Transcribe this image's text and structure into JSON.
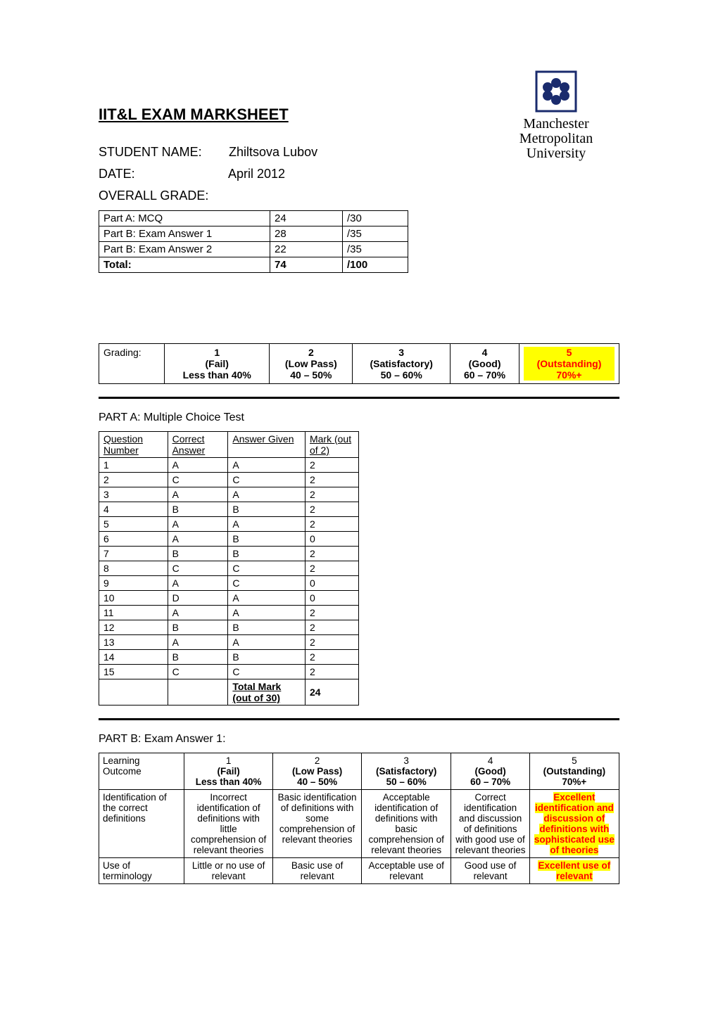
{
  "title": "IIT&L EXAM MARKSHEET",
  "logo": {
    "line1": "Manchester",
    "line2": "Metropolitan",
    "line3": "University",
    "icon_color": "#1a2b6d"
  },
  "meta": {
    "student_label": "STUDENT NAME:",
    "student_value": "Zhiltsova Lubov",
    "date_label": "DATE:",
    "date_value": "April 2012",
    "grade_label": "OVERALL GRADE:"
  },
  "summary": {
    "rows": [
      {
        "label": "Part A: MCQ",
        "score": "24",
        "out_of": "/30"
      },
      {
        "label": "Part B: Exam Answer 1",
        "score": "28",
        "out_of": "/35"
      },
      {
        "label": "Part B: Exam Answer 2",
        "score": "22",
        "out_of": "/35"
      }
    ],
    "total": {
      "label": "Total:",
      "score": "74",
      "out_of": "/100"
    }
  },
  "grading": {
    "label": "Grading:",
    "cols": [
      {
        "num": "1",
        "lbl": "(Fail)",
        "rng": "Less than 40%",
        "hl": false
      },
      {
        "num": "2",
        "lbl": "(Low Pass)",
        "rng": "40 – 50%",
        "hl": false
      },
      {
        "num": "3",
        "lbl": "(Satisfactory)",
        "rng": "50 – 60%",
        "hl": false
      },
      {
        "num": "4",
        "lbl": "(Good)",
        "rng": "60 – 70%",
        "hl": false
      },
      {
        "num": "5",
        "lbl": "(Outstanding)",
        "rng": "70%+",
        "hl": true
      }
    ]
  },
  "partA": {
    "heading": "PART A: Multiple Choice Test",
    "headers": {
      "q": "Question Number",
      "correct": "Correct Answer",
      "given": "Answer Given",
      "mark": "Mark (out of 2)"
    },
    "rows": [
      {
        "q": "1",
        "correct": "A",
        "given": "A",
        "mark": "2"
      },
      {
        "q": "2",
        "correct": "C",
        "given": "C",
        "mark": "2"
      },
      {
        "q": "3",
        "correct": "A",
        "given": "A",
        "mark": "2"
      },
      {
        "q": "4",
        "correct": "B",
        "given": "B",
        "mark": "2"
      },
      {
        "q": "5",
        "correct": "A",
        "given": "A",
        "mark": "2"
      },
      {
        "q": "6",
        "correct": "A",
        "given": "B",
        "mark": "0"
      },
      {
        "q": "7",
        "correct": "B",
        "given": "B",
        "mark": "2"
      },
      {
        "q": "8",
        "correct": "C",
        "given": "C",
        "mark": "2"
      },
      {
        "q": "9",
        "correct": "A",
        "given": "C",
        "mark": "0"
      },
      {
        "q": "10",
        "correct": "D",
        "given": "A",
        "mark": "0"
      },
      {
        "q": "11",
        "correct": "A",
        "given": "A",
        "mark": "2"
      },
      {
        "q": "12",
        "correct": "B",
        "given": "B",
        "mark": "2"
      },
      {
        "q": "13",
        "correct": "A",
        "given": "A",
        "mark": "2"
      },
      {
        "q": "14",
        "correct": "B",
        "given": "B",
        "mark": "2"
      },
      {
        "q": "15",
        "correct": "C",
        "given": "C",
        "mark": "2"
      }
    ],
    "total_label": "Total Mark (out of 30)",
    "total_value": "24"
  },
  "partB1": {
    "heading": "PART B:  Exam Answer 1:",
    "header": {
      "lo": "Learning Outcome",
      "cols": [
        {
          "num": "1",
          "lbl": "(Fail)",
          "rng": "Less than 40%"
        },
        {
          "num": "2",
          "lbl": "(Low Pass)",
          "rng": "40 – 50%"
        },
        {
          "num": "3",
          "lbl": "(Satisfactory)",
          "rng": "50 – 60%"
        },
        {
          "num": "4",
          "lbl": "(Good)",
          "rng": "60 – 70%"
        },
        {
          "num": "5",
          "lbl": "(Outstanding)",
          "rng": "70%+"
        }
      ]
    },
    "rows": [
      {
        "lo": "Identification of the correct definitions",
        "cells": [
          {
            "text": "Incorrect identification of definitions with little comprehension of relevant theories",
            "hl": false
          },
          {
            "text": "Basic identification of definitions with some comprehension of relevant theories",
            "hl": false
          },
          {
            "text": "Acceptable identification of definitions with basic comprehension of relevant theories",
            "hl": false
          },
          {
            "text": "Correct identification and discussion of definitions with good use of relevant theories",
            "hl": false
          },
          {
            "text": "Excellent identification and discussion of definitions with sophisticated use of theories",
            "hl": true
          }
        ]
      },
      {
        "lo": "Use of terminology",
        "cells": [
          {
            "text": "Little or no use of relevant",
            "hl": false
          },
          {
            "text": "Basic use of relevant",
            "hl": false
          },
          {
            "text": "Acceptable use of relevant",
            "hl": false
          },
          {
            "text": "Good use of relevant",
            "hl": false
          },
          {
            "text": "Excellent use of relevant",
            "hl": true
          }
        ]
      }
    ]
  }
}
